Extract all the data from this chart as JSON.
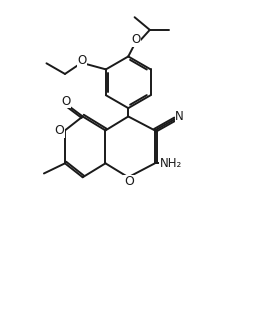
{
  "bg_color": "#ffffff",
  "line_color": "#1a1a1a",
  "line_width": 1.4,
  "font_size": 8.5,
  "figsize": [
    2.54,
    3.14
  ],
  "dpi": 100,
  "xlim": [
    0,
    10
  ],
  "ylim": [
    0,
    12.4
  ]
}
